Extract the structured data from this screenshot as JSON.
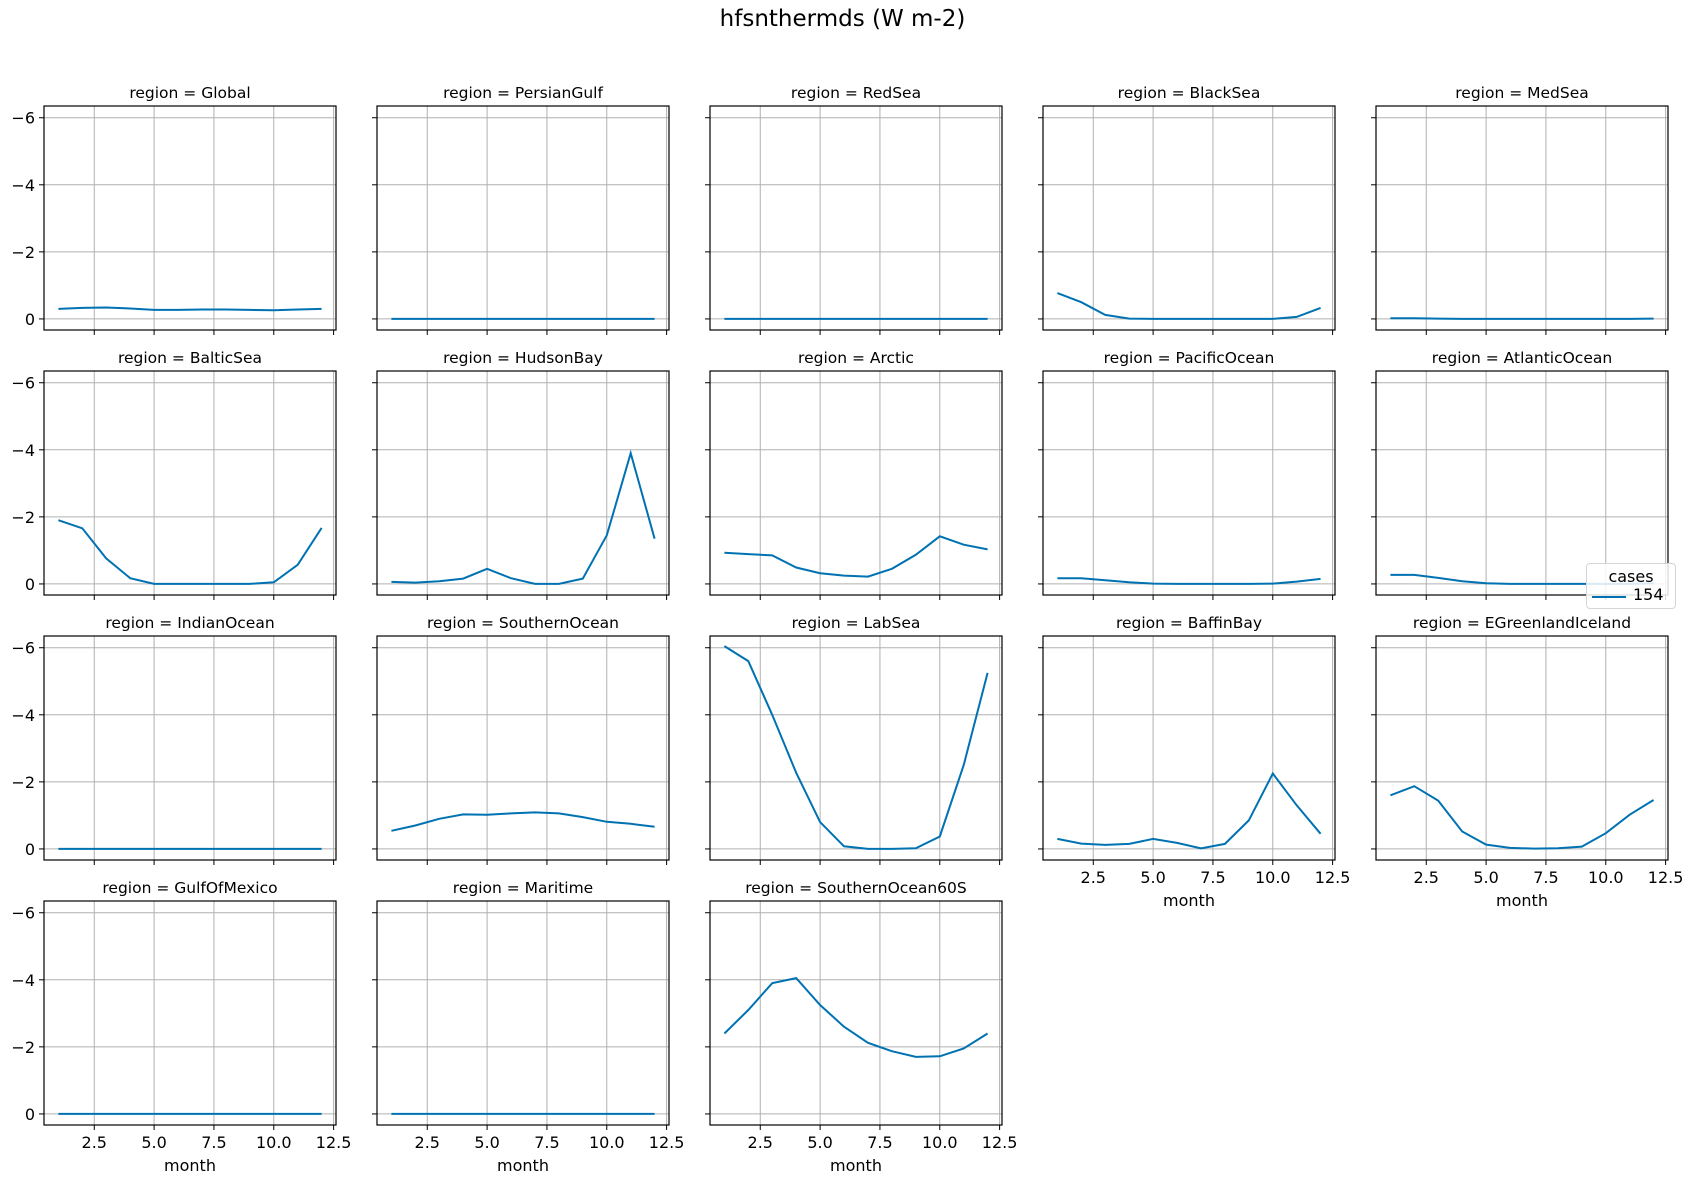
{
  "figure": {
    "title": "hfsnthermds (W m-2)",
    "line_color": "#0072b2",
    "grid_color": "#b0b0b0"
  },
  "legend": {
    "title": "cases",
    "entries": [
      {
        "label": "154",
        "color": "#0072b2"
      }
    ]
  },
  "axes": {
    "xlabel": "month",
    "xticks": [
      "2.5",
      "5.0",
      "7.5",
      "10.0",
      "12.5"
    ],
    "yticks": [
      "−6",
      "−4",
      "−2",
      "0"
    ]
  },
  "chart_data": {
    "type": "line",
    "title": "hfsnthermds (W m-2)",
    "xlabel": "month",
    "ylabel": "",
    "facet": "region",
    "x": [
      1,
      2,
      3,
      4,
      5,
      6,
      7,
      8,
      9,
      10,
      11,
      12
    ],
    "xlim": [
      0.4,
      12.6
    ],
    "ylim": [
      0.33,
      -6.35
    ],
    "y_inverted": true,
    "xticks": [
      2.5,
      5.0,
      7.5,
      10.0,
      12.5
    ],
    "yticks": [
      -6,
      -4,
      -2,
      0
    ],
    "grid": true,
    "legend": {
      "title": "cases",
      "entries": [
        "154"
      ],
      "position": "right"
    },
    "panels": [
      {
        "title": "region = Global",
        "values": [
          -0.3,
          -0.33,
          -0.34,
          -0.31,
          -0.27,
          -0.27,
          -0.28,
          -0.28,
          -0.27,
          -0.26,
          -0.28,
          -0.3
        ]
      },
      {
        "title": "region = PersianGulf",
        "values": [
          0,
          0,
          0,
          0,
          0,
          0,
          0,
          0,
          0,
          0,
          0,
          0
        ]
      },
      {
        "title": "region = RedSea",
        "values": [
          0,
          0,
          0,
          0,
          0,
          0,
          0,
          0,
          0,
          0,
          0,
          0
        ]
      },
      {
        "title": "region = BlackSea",
        "values": [
          -0.77,
          -0.5,
          -0.12,
          -0.01,
          0,
          0,
          0,
          0,
          0,
          0,
          -0.06,
          -0.33
        ]
      },
      {
        "title": "region = MedSea",
        "values": [
          -0.02,
          -0.02,
          -0.01,
          0,
          0,
          0,
          0,
          0,
          0,
          0,
          0,
          -0.01
        ]
      },
      {
        "title": "region = BalticSea",
        "values": [
          -1.9,
          -1.66,
          -0.76,
          -0.17,
          0,
          0,
          0,
          0,
          0,
          -0.05,
          -0.57,
          -1.67
        ]
      },
      {
        "title": "region = HudsonBay",
        "values": [
          -0.06,
          -0.04,
          -0.08,
          -0.16,
          -0.45,
          -0.17,
          0,
          0,
          -0.16,
          -1.45,
          -3.9,
          -1.35
        ]
      },
      {
        "title": "region = Arctic",
        "values": [
          -0.93,
          -0.89,
          -0.85,
          -0.49,
          -0.32,
          -0.25,
          -0.22,
          -0.45,
          -0.87,
          -1.42,
          -1.17,
          -1.03
        ]
      },
      {
        "title": "region = PacificOcean",
        "values": [
          -0.17,
          -0.17,
          -0.11,
          -0.05,
          -0.01,
          0,
          0,
          0,
          0,
          -0.01,
          -0.07,
          -0.15
        ]
      },
      {
        "title": "region = AtlanticOcean",
        "values": [
          -0.27,
          -0.27,
          -0.18,
          -0.08,
          -0.02,
          0,
          0,
          0,
          0,
          0,
          0,
          -0.02
        ]
      },
      {
        "title": "region = IndianOcean",
        "values": [
          0,
          0,
          0,
          0,
          0,
          0,
          0,
          0,
          0,
          0,
          0,
          0
        ]
      },
      {
        "title": "region = SouthernOcean",
        "values": [
          -0.54,
          -0.7,
          -0.9,
          -1.03,
          -1.02,
          -1.06,
          -1.09,
          -1.06,
          -0.95,
          -0.81,
          -0.75,
          -0.66
        ]
      },
      {
        "title": "region = LabSea",
        "values": [
          -6.05,
          -5.6,
          -4.0,
          -2.27,
          -0.8,
          -0.08,
          0,
          0,
          -0.02,
          -0.37,
          -2.5,
          -5.25
        ]
      },
      {
        "title": "region = BaffinBay",
        "values": [
          -0.3,
          -0.16,
          -0.12,
          -0.15,
          -0.3,
          -0.18,
          -0.02,
          -0.15,
          -0.85,
          -2.25,
          -1.3,
          -0.45
        ]
      },
      {
        "title": "region = EGreenlandIceland",
        "values": [
          -1.6,
          -1.87,
          -1.44,
          -0.52,
          -0.13,
          -0.03,
          -0.01,
          -0.02,
          -0.07,
          -0.47,
          -1.02,
          -1.46
        ]
      },
      {
        "title": "region = GulfOfMexico",
        "values": [
          0,
          0,
          0,
          0,
          0,
          0,
          0,
          0,
          0,
          0,
          0,
          0
        ]
      },
      {
        "title": "region = Maritime",
        "values": [
          0,
          0,
          0,
          0,
          0,
          0,
          0,
          0,
          0,
          0,
          0,
          0
        ]
      },
      {
        "title": "region = SouthernOcean60S",
        "values": [
          -2.4,
          -3.1,
          -3.9,
          -4.05,
          -3.25,
          -2.6,
          -2.12,
          -1.87,
          -1.7,
          -1.72,
          -1.95,
          -2.4
        ]
      }
    ]
  }
}
